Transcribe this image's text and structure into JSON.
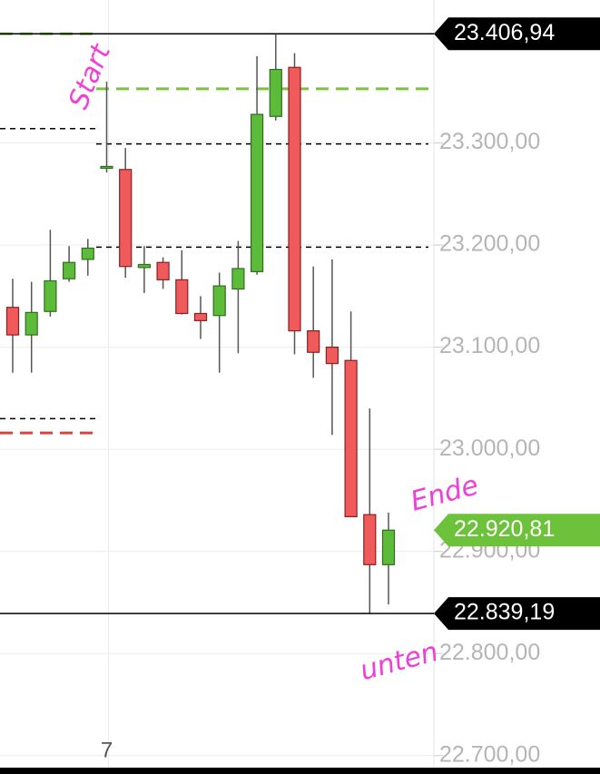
{
  "chart_data": {
    "type": "candlestick",
    "categories": [
      null,
      null,
      null,
      null,
      null,
      "7",
      null,
      null,
      null,
      null,
      null,
      null,
      null,
      null,
      null,
      null,
      null,
      null,
      null,
      null,
      null
    ],
    "open": [
      23139,
      23112,
      23135,
      23167,
      23186,
      23276,
      23274,
      23178,
      23183,
      23166,
      23133,
      23131,
      23157,
      23174,
      23326,
      23374,
      23116,
      23100,
      23087,
      22936,
      22887
    ],
    "high": [
      23167,
      23164,
      23215,
      23199,
      23206,
      23360,
      23295,
      23199,
      23188,
      23195,
      23150,
      23173,
      23204,
      23385,
      23406.94,
      23388,
      23179,
      23186,
      23135,
      23040,
      22938
    ],
    "low": [
      23075,
      23075,
      23130,
      23164,
      23170,
      23271,
      23168,
      23153,
      23157,
      23132,
      23108,
      23075,
      23094,
      23171,
      23322,
      23093,
      23070,
      23014,
      22934,
      22839.19,
      22848
    ],
    "close": [
      23112,
      23134,
      23165,
      23183,
      23197,
      23277,
      23179,
      23181,
      23166,
      23133,
      23126,
      23160,
      23177,
      23328,
      23372,
      23116,
      23095,
      23084,
      22934,
      22887,
      22920.81
    ],
    "up_color": "#5dbb3a",
    "down_color": "#f05a5a",
    "ylim": [
      22682,
      23440
    ],
    "yticks": [
      {
        "value": 22700,
        "label": "22.700,00"
      },
      {
        "value": 22800,
        "label": "22.800,00"
      },
      {
        "value": 22900,
        "label": "22.900,00"
      },
      {
        "value": 23000,
        "label": "23.000,00"
      },
      {
        "value": 23100,
        "label": "23.100,00"
      },
      {
        "value": 23200,
        "label": "23.200,00"
      },
      {
        "value": 23300,
        "label": "23.300,00"
      }
    ],
    "grid": true,
    "levels": [
      {
        "value": 23406.94,
        "color": "#7cc142",
        "dash": true,
        "span": "left"
      },
      {
        "value": 23353,
        "color": "#7cc142",
        "dash": true,
        "span": "right"
      },
      {
        "value": 23314,
        "color": "#000000",
        "dash": true,
        "span": "left"
      },
      {
        "value": 23299,
        "color": "#000000",
        "dash": true,
        "span": "right"
      },
      {
        "value": 23198,
        "color": "#000000",
        "dash": true,
        "span": "right"
      },
      {
        "value": 23030,
        "color": "#000000",
        "dash": true,
        "span": "left"
      },
      {
        "value": 23016,
        "color": "#d9443f",
        "dash": true,
        "span": "left"
      }
    ],
    "price_labels": [
      {
        "value": 23406.94,
        "label": "23.406,94",
        "color": "#000000",
        "line": true
      },
      {
        "value": 22920.81,
        "label": "22.920,81",
        "color": "#6cc23a",
        "line": false
      },
      {
        "value": 22839.19,
        "label": "22.839,19",
        "color": "#000000",
        "line": true
      }
    ],
    "annotations": [
      "Start",
      "Ende",
      "unten"
    ]
  }
}
